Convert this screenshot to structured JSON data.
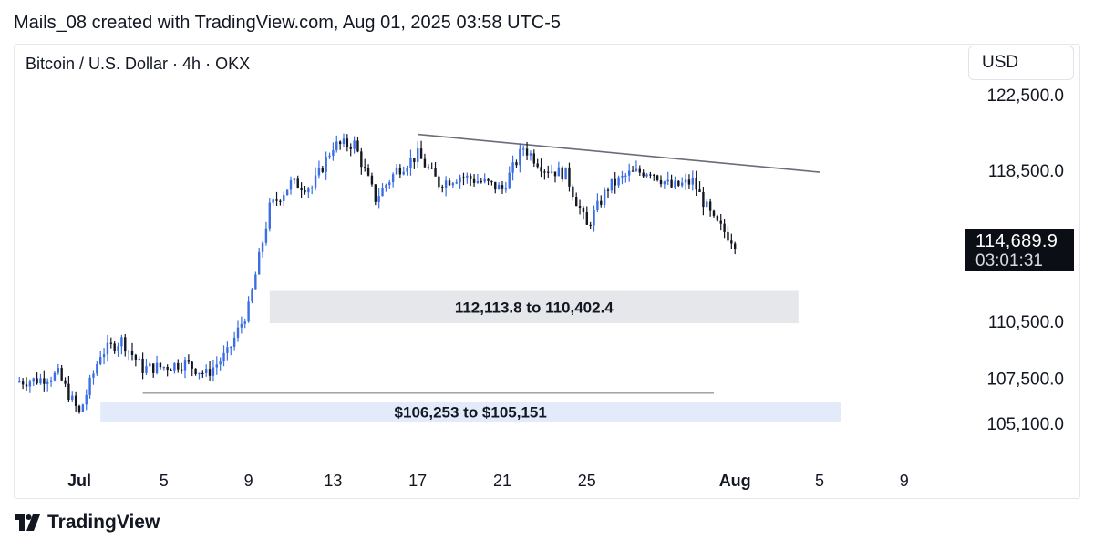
{
  "header": {
    "attribution": "Mails_08 created with TradingView.com, Aug 01, 2025 03:58 UTC-5"
  },
  "symbol": {
    "title": "Bitcoin / U.S. Dollar · 4h · OKX"
  },
  "currency_button": "USD",
  "price_tag": {
    "price": "114,689.9",
    "countdown": "03:01:31"
  },
  "footer": {
    "brand": "TradingView",
    "logo_icon": "tradingview-logo-icon"
  },
  "colors": {
    "up": "#3b6ee4",
    "down": "#131722",
    "zone_upper": "#e6e7ea",
    "zone_lower": "#e3ebfb",
    "trendline": "#6a6d78",
    "support_line": "#9598a1"
  },
  "chart_data": {
    "type": "candlestick",
    "interval": "4h",
    "y_axis": {
      "ticks": [
        122500,
        118500,
        110500,
        107500,
        105100
      ],
      "tick_labels": [
        "122,500.0",
        "118,500.0",
        "110,500.0",
        "107,500.0",
        "105,100.0"
      ],
      "position": "right"
    },
    "x_axis": {
      "tick_labels": [
        "Jul",
        "5",
        "9",
        "13",
        "17",
        "21",
        "25",
        "Aug",
        "5",
        "9"
      ],
      "tick_dates": [
        "2025-07-01",
        "2025-07-05",
        "2025-07-09",
        "2025-07-13",
        "2025-07-17",
        "2025-07-21",
        "2025-07-25",
        "2025-08-01",
        "2025-08-05",
        "2025-08-09"
      ],
      "bold_labels": [
        "Jul",
        "Aug"
      ]
    },
    "closes": [
      {
        "date": "2025-06-28",
        "close": 107300
      },
      {
        "date": "2025-06-29",
        "close": 107400
      },
      {
        "date": "2025-06-30",
        "close": 107700
      },
      {
        "date": "2025-07-01",
        "close": 105600
      },
      {
        "date": "2025-07-02",
        "close": 108800
      },
      {
        "date": "2025-07-03",
        "close": 109500
      },
      {
        "date": "2025-07-04",
        "close": 108000
      },
      {
        "date": "2025-07-05",
        "close": 108100
      },
      {
        "date": "2025-07-06",
        "close": 108300
      },
      {
        "date": "2025-07-07",
        "close": 107700
      },
      {
        "date": "2025-07-08",
        "close": 108800
      },
      {
        "date": "2025-07-09",
        "close": 111200
      },
      {
        "date": "2025-07-10",
        "close": 116500
      },
      {
        "date": "2025-07-11",
        "close": 117800
      },
      {
        "date": "2025-07-12",
        "close": 117600
      },
      {
        "date": "2025-07-13",
        "close": 119800
      },
      {
        "date": "2025-07-14",
        "close": 119900
      },
      {
        "date": "2025-07-15",
        "close": 117000
      },
      {
        "date": "2025-07-16",
        "close": 118500
      },
      {
        "date": "2025-07-17",
        "close": 119300
      },
      {
        "date": "2025-07-18",
        "close": 117800
      },
      {
        "date": "2025-07-19",
        "close": 118200
      },
      {
        "date": "2025-07-20",
        "close": 117900
      },
      {
        "date": "2025-07-21",
        "close": 117500
      },
      {
        "date": "2025-07-22",
        "close": 119700
      },
      {
        "date": "2025-07-23",
        "close": 118600
      },
      {
        "date": "2025-07-24",
        "close": 118300
      },
      {
        "date": "2025-07-25",
        "close": 115500
      },
      {
        "date": "2025-07-26",
        "close": 117600
      },
      {
        "date": "2025-07-27",
        "close": 118300
      },
      {
        "date": "2025-07-28",
        "close": 118500
      },
      {
        "date": "2025-07-29",
        "close": 117600
      },
      {
        "date": "2025-07-30",
        "close": 117900
      },
      {
        "date": "2025-07-31",
        "close": 115800
      },
      {
        "date": "2025-08-01",
        "close": 114690
      }
    ],
    "last_price": 114689.9,
    "zones": [
      {
        "label": "112,113.8 to 110,402.4",
        "high": 112113.8,
        "low": 110402.4,
        "from": "2025-07-10",
        "to": "2025-08-04"
      },
      {
        "label": "$106,253 to $105,151",
        "high": 106253,
        "low": 105151,
        "from": "2025-07-02",
        "to": "2025-08-06"
      }
    ],
    "trendline": {
      "start": {
        "date": "2025-07-17",
        "price": 120400
      },
      "end": {
        "date": "2025-08-05",
        "price": 118400
      }
    },
    "support_line": {
      "price": 106700,
      "from": "2025-07-04",
      "to": "2025-07-31"
    }
  }
}
